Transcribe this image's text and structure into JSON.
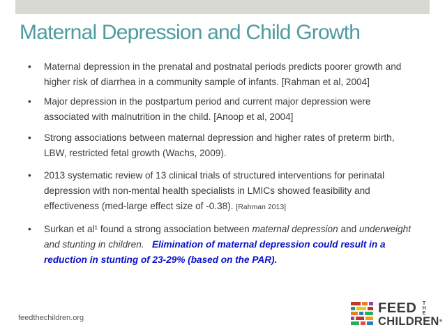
{
  "slide": {
    "title": "Maternal Depression and Child Growth",
    "bullet_symbol": "•",
    "bullets": [
      {
        "text": "Maternal depression in the prenatal and postnatal periods predicts poorer growth and higher risk of diarrhea in a community sample of infants. [Rahman et al, 2004]"
      },
      {
        "text": "Major depression in the postpartum period and current major depression were associated with malnutrition in the child.  [Anoop et al, 2004]"
      },
      {
        "text": "Strong associations between maternal depression and higher rates of preterm birth, LBW, restricted fetal growth (Wachs, 2009)."
      },
      {
        "text": "2013 systematic review of 13 clinical trials  of structured interventions for perinatal depression with non-mental health specialists in LMICs showed feasibility and effectiveness (med-large effect size of -0.38).",
        "citation": "[Rahman 2013]"
      },
      {
        "part1": "Surkan et al¹ found a strong association between ",
        "italic1": "maternal depression",
        "part2": " and ",
        "italic2": "underweight and stunting in children.",
        "emphasis": "Elimination of maternal depression could result in a reduction in stunting of 23-29% (based on the PAR)."
      }
    ]
  },
  "footer": {
    "url": "feedthechildren.org",
    "logo_line1": "FEED",
    "logo_the": "THE",
    "logo_line2": "CHILDREN",
    "logo_registered": "®"
  },
  "colors": {
    "title": "#4e9ba0",
    "emphasis": "#0a10c8",
    "top_bar": "#d9d9d4",
    "text": "#3a3a3a"
  }
}
